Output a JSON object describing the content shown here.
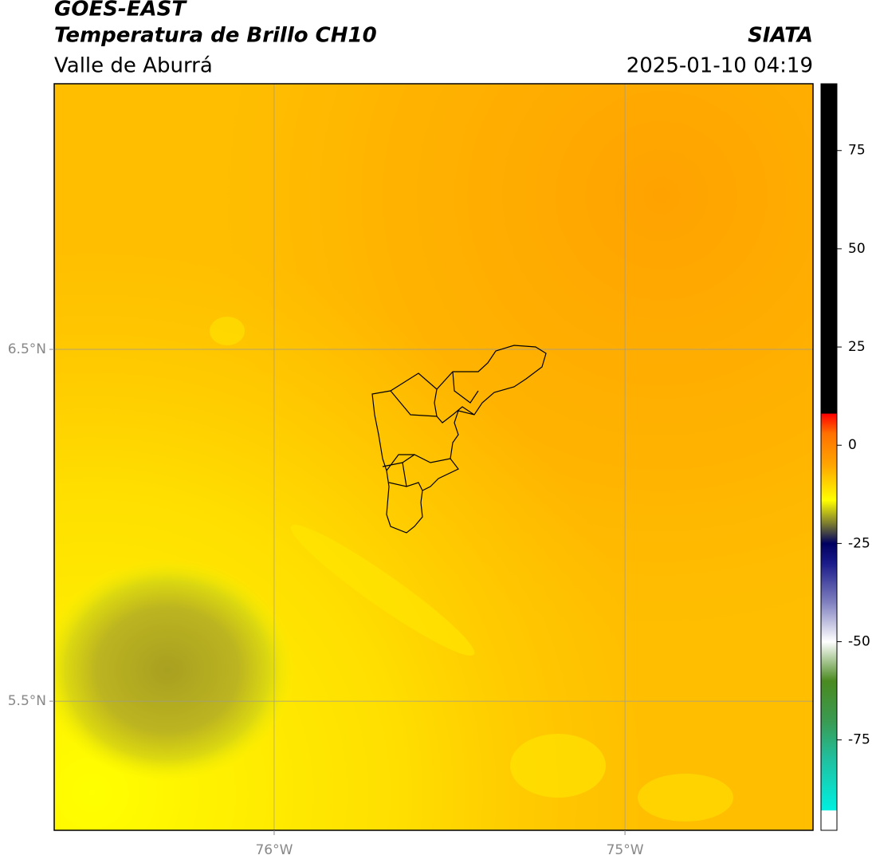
{
  "chart_data": {
    "type": "raster-map",
    "title": "GOES-EAST",
    "subtitle": "Temperatura de Brillo CH10",
    "region": "Valle de Aburrá",
    "source": "SIATA",
    "timestamp": "2025-01-10 04:19",
    "xlim": [
      -76.627,
      -74.464
    ],
    "ylim": [
      5.133,
      7.255
    ],
    "xticks": [
      {
        "value": -76,
        "label": "76°W"
      },
      {
        "value": -75,
        "label": "75°W"
      }
    ],
    "yticks": [
      {
        "value": 5.5,
        "label": "5.5°N"
      },
      {
        "value": 6.5,
        "label": "6.5°N"
      }
    ],
    "grid": true,
    "colorbar": {
      "lim": [
        -98,
        92
      ],
      "ticks": [
        -75,
        -50,
        -25,
        0,
        25,
        50,
        75
      ],
      "colormap": [
        {
          "value": -98,
          "color": "#ffffff"
        },
        {
          "value": -93,
          "color": "#ffffff"
        },
        {
          "value": -92.9,
          "color": "#00f0e0"
        },
        {
          "value": -80,
          "color": "#20c0a0"
        },
        {
          "value": -70,
          "color": "#3a9a50"
        },
        {
          "value": -60,
          "color": "#4a8a20"
        },
        {
          "value": -50,
          "color": "#ffffff"
        },
        {
          "value": -40,
          "color": "#8080c0"
        },
        {
          "value": -30,
          "color": "#1a1a8a"
        },
        {
          "value": -25,
          "color": "#000060"
        },
        {
          "value": -20,
          "color": "#7a7a30"
        },
        {
          "value": -14,
          "color": "#ffff00"
        },
        {
          "value": -5,
          "color": "#ffa500"
        },
        {
          "value": 3,
          "color": "#ff7000"
        },
        {
          "value": 8,
          "color": "#ff0000"
        },
        {
          "value": 8.1,
          "color": "#000000"
        },
        {
          "value": 92,
          "color": "#000000"
        }
      ]
    }
  }
}
